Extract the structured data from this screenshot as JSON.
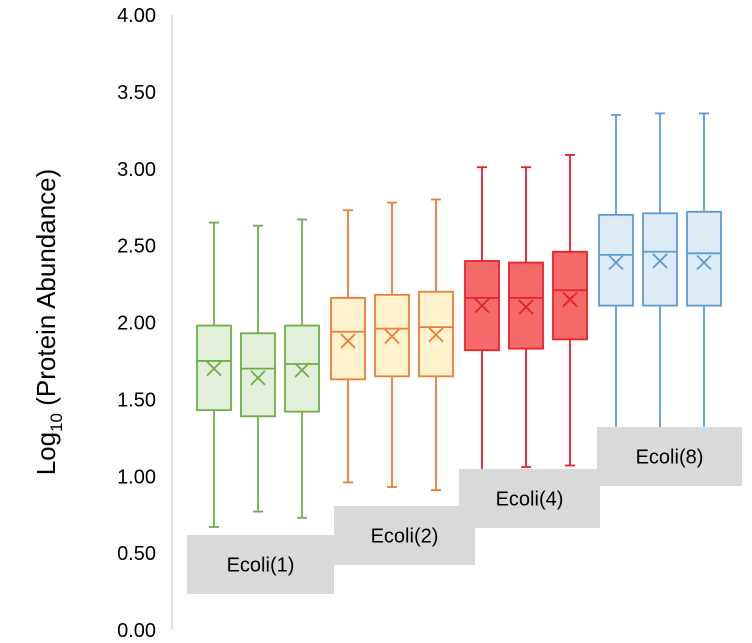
{
  "chart_data": {
    "type": "box",
    "title": "",
    "xlabel": "",
    "ylabel": {
      "prefix": "Log",
      "subscript": "10",
      "suffix": " (Protein Abundance)"
    },
    "ylim": [
      0,
      4
    ],
    "yticks": [
      "0.00",
      "0.50",
      "1.00",
      "1.50",
      "2.00",
      "2.50",
      "3.00",
      "3.50",
      "4.00"
    ],
    "grid": false,
    "groups": [
      {
        "label": "Ecoli(1)",
        "stroke": "#70AD47",
        "fill": "#E2EFDA",
        "boxes": [
          {
            "min": 0.67,
            "q1": 1.43,
            "median": 1.75,
            "mean": 1.7,
            "q3": 1.98,
            "max": 2.65
          },
          {
            "min": 0.77,
            "q1": 1.39,
            "median": 1.7,
            "mean": 1.64,
            "q3": 1.93,
            "max": 2.63
          },
          {
            "min": 0.73,
            "q1": 1.42,
            "median": 1.73,
            "mean": 1.69,
            "q3": 1.98,
            "max": 2.67
          }
        ]
      },
      {
        "label": "Ecoli(2)",
        "stroke": "#ED7D31",
        "fill": "#FFF2CC",
        "boxes": [
          {
            "min": 0.96,
            "q1": 1.63,
            "median": 1.94,
            "mean": 1.88,
            "q3": 2.16,
            "max": 2.73
          },
          {
            "min": 0.93,
            "q1": 1.65,
            "median": 1.96,
            "mean": 1.91,
            "q3": 2.18,
            "max": 2.78
          },
          {
            "min": 0.91,
            "q1": 1.65,
            "median": 1.97,
            "mean": 1.92,
            "q3": 2.2,
            "max": 2.8
          }
        ]
      },
      {
        "label": "Ecoli(4)",
        "stroke": "#E8202A",
        "fill": "#F4696A",
        "boxes": [
          {
            "min": 1.02,
            "q1": 1.82,
            "median": 2.16,
            "mean": 2.11,
            "q3": 2.4,
            "max": 3.01
          },
          {
            "min": 1.06,
            "q1": 1.83,
            "median": 2.16,
            "mean": 2.1,
            "q3": 2.39,
            "max": 3.01
          },
          {
            "min": 1.07,
            "q1": 1.89,
            "median": 2.21,
            "mean": 2.15,
            "q3": 2.46,
            "max": 3.09
          }
        ]
      },
      {
        "label": "Ecoli(8)",
        "stroke": "#5B9BD5",
        "fill": "#DDEBF7",
        "boxes": [
          {
            "min": 1.31,
            "q1": 2.11,
            "median": 2.44,
            "mean": 2.39,
            "q3": 2.7,
            "max": 3.35
          },
          {
            "min": 1.31,
            "q1": 2.11,
            "median": 2.46,
            "mean": 2.4,
            "q3": 2.71,
            "max": 3.36
          },
          {
            "min": 1.31,
            "q1": 2.11,
            "median": 2.45,
            "mean": 2.39,
            "q3": 2.72,
            "max": 3.36
          }
        ]
      }
    ]
  }
}
